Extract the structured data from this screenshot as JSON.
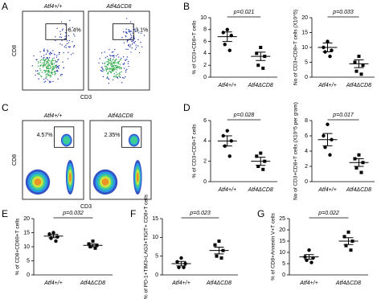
{
  "panel_labels": [
    "A",
    "B",
    "C",
    "D",
    "E",
    "F",
    "G"
  ],
  "chart_data": [
    {
      "type": "flow",
      "title": "Atf4+/+",
      "values": [
        6.4
      ],
      "value_labels": [
        "6.4%"
      ],
      "xlabel": "CD3",
      "ylabel": "CD8"
    },
    {
      "type": "flow",
      "title": "Atf4ΔCD8",
      "values": [
        3.1
      ],
      "value_labels": [
        "3.1%"
      ]
    },
    {
      "type": "dot",
      "categories": [
        "Atf4+/+",
        "Atf4ΔCD8"
      ],
      "ylabel": "% of CD3+CD8+T cells",
      "ylim": [
        0,
        10
      ],
      "yticks": [
        0,
        2,
        4,
        6,
        8,
        10
      ],
      "values": [
        [
          8,
          7.5,
          7,
          5.5,
          4.5
        ],
        [
          5,
          4,
          3.5,
          2,
          1.5
        ]
      ],
      "mean": [
        6.8,
        3.5
      ],
      "sem": [
        0.8,
        0.7
      ],
      "annotation": "p=0.021"
    },
    {
      "type": "dot",
      "categories": [
        "Atf4+/+",
        "Atf4ΔCD8"
      ],
      "ylabel": "No of CD3+CD8+T cells (X10^5)",
      "ylim": [
        0,
        20
      ],
      "yticks": [
        0,
        5,
        10,
        15,
        20
      ],
      "values": [
        [
          12,
          10,
          9,
          8.5,
          7
        ],
        [
          7,
          5,
          4,
          2,
          1
        ]
      ],
      "mean": [
        10,
        4.5
      ],
      "sem": [
        1.5,
        1.3
      ],
      "annotation": "p=0.033"
    },
    {
      "type": "flow",
      "title": "Atf4+/+",
      "values": [
        4.57
      ],
      "value_labels": [
        "4.57%"
      ],
      "xlabel": "CD3",
      "ylabel": "CD8"
    },
    {
      "type": "flow",
      "title": "Atf4ΔCD8",
      "values": [
        2.35
      ],
      "value_labels": [
        "2.35%"
      ]
    },
    {
      "type": "dot",
      "categories": [
        "Atf4+/+",
        "Atf4ΔCD8"
      ],
      "ylabel": "% of CD3+CD8+T cells",
      "ylim": [
        0,
        6
      ],
      "yticks": [
        0,
        2,
        4,
        6
      ],
      "values": [
        [
          5,
          4.5,
          4,
          3.5,
          2.5
        ],
        [
          2.8,
          2.5,
          2,
          1.5,
          1.2
        ]
      ],
      "mean": [
        4,
        2
      ],
      "sem": [
        0.5,
        0.4
      ],
      "annotation": "p=0.028"
    },
    {
      "type": "dot",
      "categories": [
        "Atf4+/+",
        "Atf4ΔCD8"
      ],
      "ylabel": "No of CD3+CD8+T cells (X10^5 per gram)",
      "ylim": [
        0,
        8
      ],
      "yticks": [
        0,
        2,
        4,
        6,
        8
      ],
      "values": [
        [
          7.5,
          6,
          5.5,
          4.5,
          3.5
        ],
        [
          3.5,
          3,
          2.5,
          1.8,
          1.2
        ]
      ],
      "mean": [
        5.5,
        2.5
      ],
      "sem": [
        0.8,
        0.5
      ],
      "annotation": "p=0.017"
    },
    {
      "type": "dot",
      "categories": [
        "Atf4+/+",
        "Atf4ΔCD8"
      ],
      "ylabel": "% of CD8+CD69+T cells",
      "ylim": [
        0,
        20
      ],
      "yticks": [
        0,
        5,
        10,
        15,
        20
      ],
      "values": [
        [
          15,
          14.5,
          13.5,
          13,
          12
        ],
        [
          12,
          11,
          10.5,
          10,
          9.5
        ]
      ],
      "mean": [
        13.8,
        10.5
      ],
      "sem": [
        0.6,
        0.5
      ],
      "annotation": "p=0.032"
    },
    {
      "type": "dot",
      "categories": [
        "Atf4+/+",
        "Atf4ΔCD8"
      ],
      "ylabel": "% of PD-1+TIM3+LAG3+TIGIT+ CD8+T cells",
      "ylim": [
        0,
        15
      ],
      "yticks": [
        0,
        5,
        10,
        15
      ],
      "values": [
        [
          4.5,
          3.5,
          3,
          2,
          2
        ],
        [
          9,
          8,
          6.5,
          5,
          4.5
        ]
      ],
      "mean": [
        3,
        6.5
      ],
      "sem": [
        0.6,
        0.9
      ],
      "annotation": "p=0.023"
    },
    {
      "type": "dot",
      "categories": [
        "Atf4+/+",
        "Atf4ΔCD8"
      ],
      "ylabel": "% of CD8+Annexin V+T cells",
      "ylim": [
        0,
        25
      ],
      "yticks": [
        0,
        5,
        10,
        15,
        20,
        25
      ],
      "values": [
        [
          11,
          8,
          7.5,
          6.5,
          5.5
        ],
        [
          19,
          17,
          15,
          13,
          11
        ]
      ],
      "mean": [
        8,
        15
      ],
      "sem": [
        1,
        1.5
      ],
      "annotation": "p=0.022"
    }
  ]
}
